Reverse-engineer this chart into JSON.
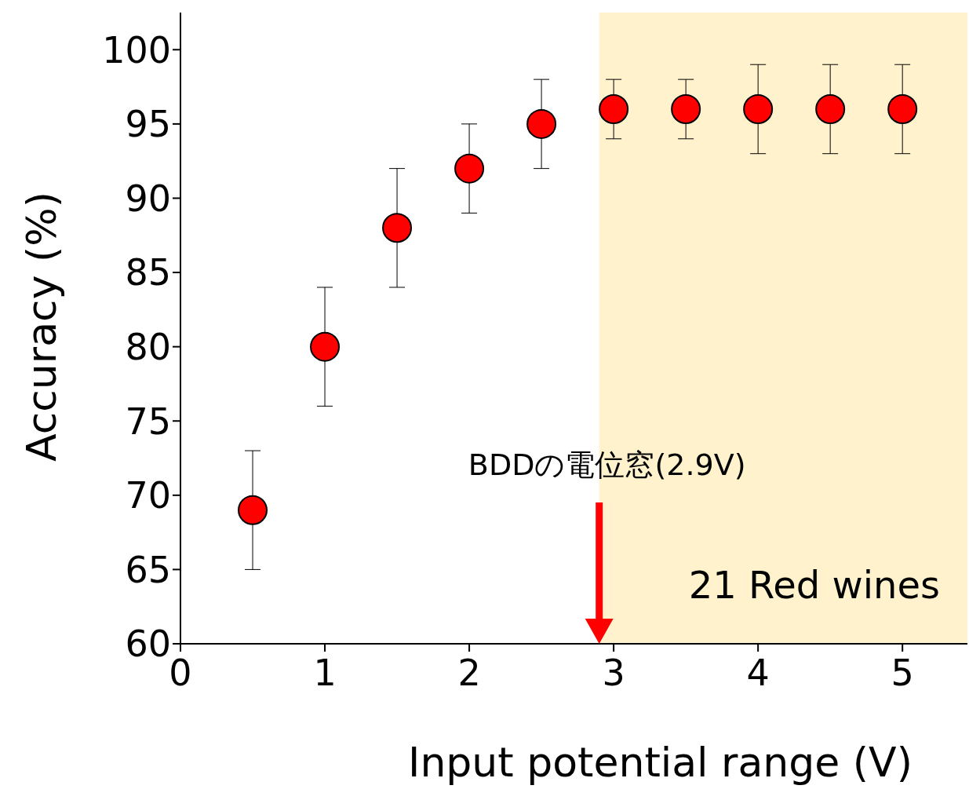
{
  "chart_data": {
    "type": "scatter",
    "xlabel": "Input potential range (V)",
    "ylabel": "Accuracy (%)",
    "x": [
      0.5,
      1,
      1.5,
      2,
      2.5,
      3,
      3.5,
      4,
      4.5,
      5
    ],
    "series": [
      {
        "color": "#ff0000",
        "values": [
          69,
          80,
          88,
          92,
          95,
          96,
          96,
          96,
          96,
          96
        ],
        "errors": [
          4,
          4,
          4,
          3,
          3,
          2,
          2,
          3,
          3,
          3
        ]
      }
    ],
    "xlim": [
      0,
      5.45
    ],
    "xticks": [
      0,
      1,
      2,
      3,
      4,
      5
    ],
    "ylim": [
      60,
      102.5
    ],
    "yticks": [
      60,
      65,
      70,
      75,
      80,
      85,
      90,
      95,
      100
    ],
    "bands": [
      {
        "axis": "x",
        "from": 2.9,
        "to": 5.45,
        "color": "#fff2cc"
      }
    ],
    "annotations": [
      "BDDの電位窓(2.9V)",
      "21 Red wines"
    ],
    "marker": "circle",
    "grid": false,
    "legend": false
  }
}
